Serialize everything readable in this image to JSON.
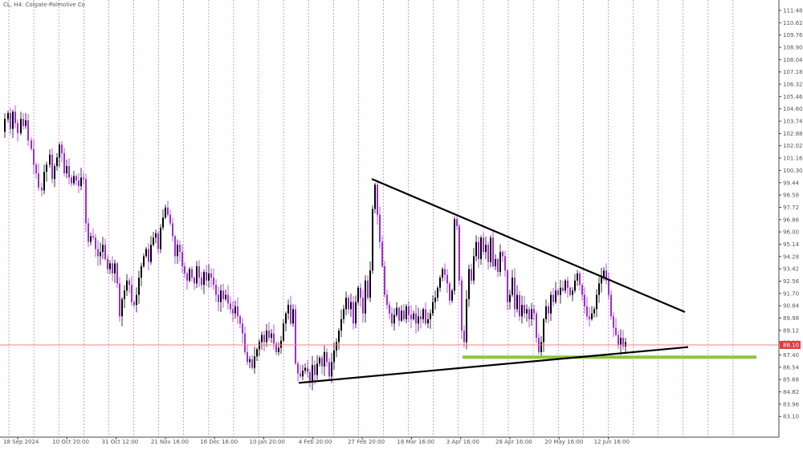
{
  "symbol_label": "CL, H4:  Colgate-Palmolive Co",
  "colors": {
    "background": "#ffffff",
    "grid": "#9b1fc7",
    "bull_candle": "#000000",
    "bear_candle": "#9b2fd0",
    "trend_line": "#000000",
    "support_line": "#8dc63f",
    "current_price_line": "#f08080",
    "current_price_tag": "#e33b3b",
    "axis_text": "#555555"
  },
  "chart_data": {
    "type": "candlestick",
    "title": "",
    "ylim": [
      82.6,
      112.0
    ],
    "y_ticks": [
      "111.48",
      "110.62",
      "109.76",
      "108.90",
      "108.04",
      "107.18",
      "106.32",
      "105.46",
      "104.60",
      "103.74",
      "102.88",
      "102.02",
      "101.16",
      "100.30",
      "99.44",
      "98.58",
      "97.72",
      "96.86",
      "96.00",
      "95.14",
      "94.28",
      "93.42",
      "92.56",
      "91.70",
      "90.84",
      "89.98",
      "89.12",
      "88.26",
      "87.40",
      "86.54",
      "85.68",
      "84.82",
      "83.96",
      "83.10"
    ],
    "x_ticks": [
      "18 Sep 2024",
      "10 Oct 20:00",
      "31 Oct 12:00",
      "21 Nov 16:00",
      "16 Dec 16:00",
      "10 Jan 20:00",
      "4 Feb 20:00",
      "27 Feb 20:00",
      "18 Mar 16:00",
      "3 Apr 16:00",
      "28 Apr 16:00",
      "20 May 16:00",
      "12 Jun 16:00"
    ],
    "current_price": "88.10",
    "close_path": [
      [
        0,
        103.0
      ],
      [
        4,
        103.9
      ],
      [
        8,
        104.3
      ],
      [
        11,
        103.2
      ],
      [
        14,
        104.4
      ],
      [
        17,
        103.6
      ],
      [
        20,
        102.9
      ],
      [
        24,
        103.9
      ],
      [
        27,
        103.4
      ],
      [
        30,
        103.8
      ],
      [
        33,
        102.4
      ],
      [
        37,
        101.8
      ],
      [
        40,
        100.7
      ],
      [
        43,
        100.1
      ],
      [
        46,
        99.1
      ],
      [
        50,
        98.9
      ],
      [
        53,
        100.2
      ],
      [
        56,
        100.7
      ],
      [
        60,
        101.4
      ],
      [
        63,
        99.7
      ],
      [
        66,
        100.6
      ],
      [
        69,
        101.2
      ],
      [
        72,
        102.1
      ],
      [
        75,
        101.5
      ],
      [
        78,
        100.1
      ],
      [
        81,
        100.6
      ],
      [
        84,
        99.8
      ],
      [
        87,
        99.4
      ],
      [
        90,
        99.9
      ],
      [
        93,
        99.6
      ],
      [
        96,
        99.2
      ],
      [
        99,
        99.8
      ],
      [
        102,
        99.7
      ],
      [
        105,
        96.6
      ],
      [
        108,
        95.3
      ],
      [
        111,
        95.7
      ],
      [
        114,
        95.6
      ],
      [
        117,
        94.8
      ],
      [
        120,
        94.3
      ],
      [
        123,
        94.6
      ],
      [
        126,
        95.1
      ],
      [
        129,
        94.1
      ],
      [
        132,
        93.4
      ],
      [
        135,
        93.8
      ],
      [
        138,
        93.1
      ],
      [
        141,
        93.8
      ],
      [
        144,
        92.4
      ],
      [
        147,
        90.1
      ],
      [
        150,
        91.3
      ],
      [
        153,
        91.9
      ],
      [
        156,
        92.6
      ],
      [
        159,
        92.3
      ],
      [
        162,
        91.1
      ],
      [
        165,
        90.9
      ],
      [
        168,
        91.6
      ],
      [
        171,
        92.8
      ],
      [
        174,
        93.6
      ],
      [
        177,
        94.3
      ],
      [
        180,
        94.8
      ],
      [
        183,
        93.9
      ],
      [
        186,
        95.1
      ],
      [
        189,
        95.6
      ],
      [
        192,
        95.9
      ],
      [
        195,
        94.8
      ],
      [
        198,
        96.3
      ],
      [
        201,
        97.0
      ],
      [
        204,
        97.7
      ],
      [
        207,
        97.2
      ],
      [
        210,
        96.6
      ],
      [
        213,
        95.7
      ],
      [
        216,
        94.3
      ],
      [
        219,
        95.1
      ],
      [
        222,
        94.6
      ],
      [
        225,
        93.6
      ],
      [
        228,
        93.1
      ],
      [
        231,
        92.6
      ],
      [
        234,
        93.4
      ],
      [
        237,
        92.8
      ],
      [
        240,
        92.4
      ],
      [
        243,
        93.6
      ],
      [
        246,
        92.8
      ],
      [
        249,
        92.3
      ],
      [
        252,
        93.2
      ],
      [
        255,
        92.6
      ],
      [
        258,
        93.1
      ],
      [
        261,
        92.8
      ],
      [
        264,
        92.3
      ],
      [
        267,
        91.6
      ],
      [
        270,
        91.1
      ],
      [
        273,
        91.9
      ],
      [
        276,
        91.3
      ],
      [
        279,
        91.6
      ],
      [
        282,
        91.0
      ],
      [
        285,
        90.6
      ],
      [
        288,
        90.3
      ],
      [
        291,
        90.8
      ],
      [
        294,
        90.1
      ],
      [
        297,
        89.6
      ],
      [
        300,
        88.9
      ],
      [
        303,
        87.6
      ],
      [
        306,
        86.9
      ],
      [
        309,
        87.1
      ],
      [
        312,
        86.5
      ],
      [
        315,
        87.3
      ],
      [
        318,
        87.8
      ],
      [
        321,
        88.3
      ],
      [
        324,
        88.8
      ],
      [
        327,
        88.3
      ],
      [
        330,
        89.1
      ],
      [
        333,
        88.6
      ],
      [
        336,
        88.9
      ],
      [
        339,
        88.2
      ],
      [
        342,
        87.6
      ],
      [
        345,
        87.9
      ],
      [
        348,
        88.4
      ],
      [
        351,
        89.6
      ],
      [
        354,
        90.3
      ],
      [
        357,
        90.9
      ],
      [
        360,
        89.6
      ],
      [
        363,
        90.6
      ],
      [
        366,
        86.8
      ],
      [
        369,
        86.1
      ],
      [
        372,
        85.9
      ],
      [
        375,
        86.3
      ],
      [
        378,
        86.5
      ],
      [
        381,
        86.2
      ],
      [
        384,
        85.6
      ],
      [
        387,
        86.7
      ],
      [
        390,
        86.0
      ],
      [
        393,
        86.8
      ],
      [
        396,
        87.2
      ],
      [
        399,
        86.6
      ],
      [
        402,
        87.6
      ],
      [
        405,
        86.9
      ],
      [
        408,
        85.9
      ],
      [
        411,
        86.9
      ],
      [
        414,
        87.7
      ],
      [
        417,
        88.3
      ],
      [
        420,
        89.1
      ],
      [
        423,
        89.9
      ],
      [
        426,
        90.6
      ],
      [
        429,
        91.4
      ],
      [
        432,
        90.6
      ],
      [
        435,
        91.1
      ],
      [
        438,
        89.6
      ],
      [
        441,
        91.1
      ],
      [
        444,
        92.1
      ],
      [
        447,
        91.4
      ],
      [
        450,
        90.3
      ],
      [
        453,
        92.6
      ],
      [
        456,
        91.4
      ],
      [
        459,
        93.3
      ],
      [
        462,
        97.6
      ],
      [
        465,
        99.3
      ],
      [
        468,
        97.2
      ],
      [
        471,
        95.3
      ],
      [
        474,
        93.6
      ],
      [
        477,
        91.6
      ],
      [
        480,
        90.9
      ],
      [
        483,
        90.3
      ],
      [
        486,
        89.6
      ],
      [
        489,
        90.2
      ],
      [
        492,
        90.7
      ],
      [
        495,
        89.8
      ],
      [
        498,
        90.5
      ],
      [
        501,
        89.9
      ],
      [
        504,
        90.8
      ],
      [
        507,
        90.2
      ],
      [
        510,
        89.9
      ],
      [
        513,
        90.3
      ],
      [
        516,
        89.6
      ],
      [
        519,
        90.1
      ],
      [
        522,
        89.9
      ],
      [
        525,
        90.6
      ],
      [
        528,
        89.6
      ],
      [
        531,
        89.9
      ],
      [
        534,
        90.3
      ],
      [
        537,
        91.1
      ],
      [
        540,
        91.4
      ],
      [
        543,
        92.1
      ],
      [
        546,
        92.8
      ],
      [
        549,
        93.4
      ],
      [
        552,
        93.0
      ],
      [
        555,
        92.4
      ],
      [
        558,
        91.2
      ],
      [
        561,
        91.9
      ],
      [
        564,
        96.9
      ],
      [
        567,
        96.4
      ],
      [
        570,
        92.6
      ],
      [
        573,
        89.1
      ],
      [
        576,
        88.3
      ],
      [
        579,
        91.3
      ],
      [
        582,
        93.4
      ],
      [
        585,
        92.6
      ],
      [
        588,
        94.3
      ],
      [
        591,
        95.3
      ],
      [
        594,
        94.1
      ],
      [
        597,
        95.6
      ],
      [
        600,
        94.6
      ],
      [
        603,
        95.1
      ],
      [
        606,
        93.9
      ],
      [
        609,
        95.6
      ],
      [
        612,
        93.6
      ],
      [
        615,
        94.1
      ],
      [
        618,
        93.2
      ],
      [
        621,
        94.6
      ],
      [
        624,
        94.3
      ],
      [
        627,
        93.3
      ],
      [
        630,
        91.1
      ],
      [
        633,
        91.6
      ],
      [
        636,
        92.8
      ],
      [
        639,
        90.6
      ],
      [
        642,
        91.6
      ],
      [
        645,
        90.1
      ],
      [
        648,
        90.9
      ],
      [
        651,
        90.3
      ],
      [
        654,
        90.6
      ],
      [
        657,
        89.9
      ],
      [
        660,
        90.6
      ],
      [
        663,
        90.3
      ],
      [
        666,
        88.6
      ],
      [
        669,
        87.6
      ],
      [
        672,
        88.3
      ],
      [
        675,
        89.9
      ],
      [
        678,
        90.8
      ],
      [
        681,
        90.3
      ],
      [
        684,
        91.6
      ],
      [
        687,
        91.1
      ],
      [
        690,
        91.9
      ],
      [
        693,
        91.6
      ],
      [
        696,
        92.1
      ],
      [
        699,
        91.9
      ],
      [
        702,
        92.6
      ],
      [
        705,
        92.1
      ],
      [
        708,
        91.6
      ],
      [
        711,
        91.9
      ],
      [
        714,
        92.6
      ],
      [
        717,
        93.1
      ],
      [
        720,
        92.3
      ],
      [
        723,
        91.6
      ],
      [
        726,
        90.8
      ],
      [
        729,
        90.1
      ],
      [
        732,
        89.9
      ],
      [
        735,
        90.3
      ],
      [
        738,
        90.6
      ],
      [
        741,
        91.6
      ],
      [
        744,
        92.4
      ],
      [
        747,
        92.8
      ],
      [
        750,
        93.3
      ],
      [
        753,
        92.6
      ],
      [
        756,
        91.6
      ],
      [
        759,
        90.1
      ],
      [
        762,
        89.3
      ],
      [
        765,
        88.8
      ],
      [
        768,
        88.1
      ],
      [
        771,
        88.6
      ],
      [
        774,
        88.0
      ],
      [
        777,
        88.3
      ]
    ],
    "annotations": {
      "resistance_trendline": {
        "from": [
          463,
          99.7
        ],
        "to": [
          853,
          90.4
        ]
      },
      "support_trendline": {
        "from": [
          372,
          85.45
        ],
        "to": [
          857,
          87.95
        ]
      },
      "support_zone": {
        "from": [
          576,
          87.25
        ],
        "to": [
          942,
          87.25
        ]
      }
    }
  }
}
